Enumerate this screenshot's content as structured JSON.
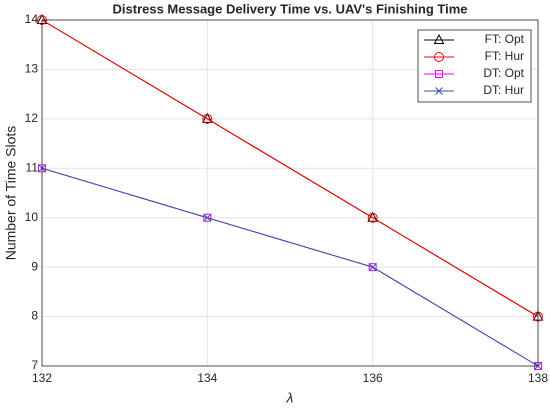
{
  "chart_data": {
    "type": "line",
    "title": "Distress Message Delivery Time vs. UAV's Finishing Time",
    "x_label": "λ",
    "y_label": "Number of Time Slots",
    "x": [
      132,
      134,
      136,
      138
    ],
    "series": [
      {
        "name": "FT: Opt",
        "color": "#000000",
        "marker": "triangle",
        "values": [
          14,
          12,
          10,
          8
        ]
      },
      {
        "name": "FT: Hur",
        "color": "#ff0000",
        "marker": "circle",
        "values": [
          14,
          12,
          10,
          8
        ]
      },
      {
        "name": "DT: Opt",
        "color": "#ff00ff",
        "marker": "square",
        "values": [
          11,
          10,
          9,
          7
        ]
      },
      {
        "name": "DT: Hur",
        "color": "#3355aa",
        "marker": "x",
        "values": [
          11,
          10,
          9,
          7
        ]
      }
    ],
    "xlim": [
      132,
      138
    ],
    "xticks": [
      132,
      134,
      136,
      138
    ],
    "ylim": [
      7,
      14
    ],
    "yticks": [
      7,
      8,
      9,
      10,
      11,
      12,
      13,
      14
    ],
    "grid": true,
    "legend": "top-right"
  }
}
